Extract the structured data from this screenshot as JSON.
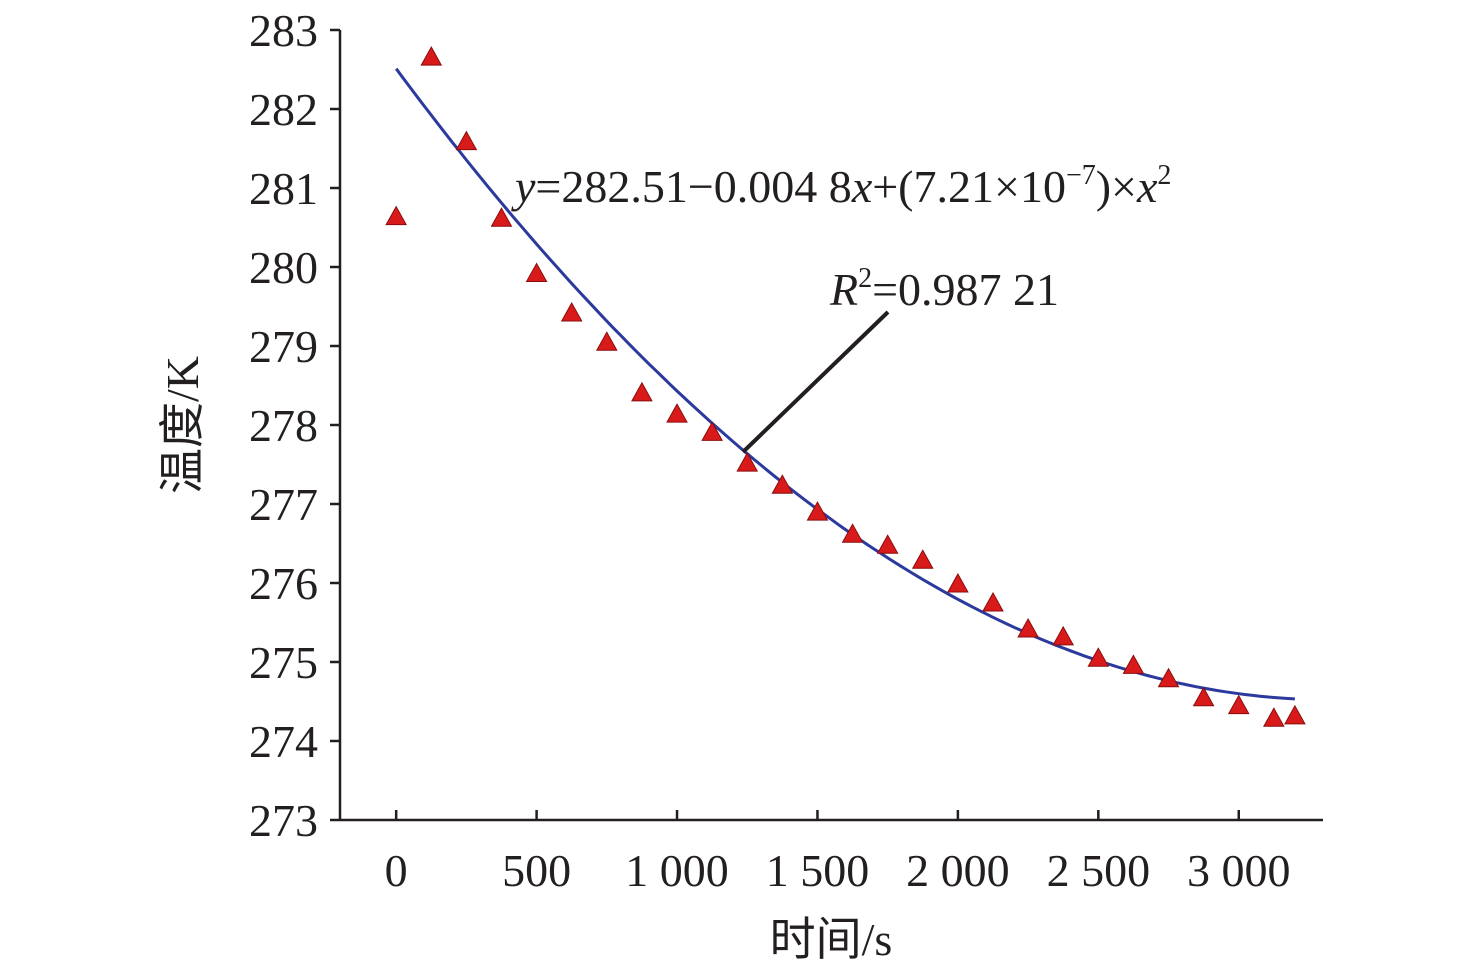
{
  "chart_data": {
    "type": "scatter",
    "xlabel": "时间/s",
    "ylabel": "温度/K",
    "xlim": [
      -200,
      3300
    ],
    "ylim": [
      273,
      283
    ],
    "x_ticks": [
      0,
      500,
      1000,
      1500,
      2000,
      2500,
      3000
    ],
    "x_tick_labels": [
      "0",
      "500",
      "1 000",
      "1 500",
      "2 000",
      "2 500",
      "3 000"
    ],
    "y_ticks": [
      273,
      274,
      275,
      276,
      277,
      278,
      279,
      280,
      281,
      282,
      283
    ],
    "y_tick_labels": [
      "273",
      "274",
      "275",
      "276",
      "277",
      "278",
      "279",
      "280",
      "281",
      "282",
      "283"
    ],
    "series": [
      {
        "marker": "triangle",
        "color": "#d91a1a",
        "x": [
          0,
          125,
          250,
          375,
          500,
          625,
          750,
          875,
          1000,
          1125,
          1250,
          1375,
          1500,
          1625,
          1750,
          1875,
          2000,
          2125,
          2250,
          2375,
          2500,
          2625,
          2750,
          2875,
          3000,
          3125,
          3200
        ],
        "y": [
          280.65,
          282.67,
          281.6,
          280.63,
          279.93,
          279.43,
          279.06,
          278.42,
          278.15,
          277.92,
          277.53,
          277.25,
          276.91,
          276.63,
          276.49,
          276.3,
          276.0,
          275.76,
          275.43,
          275.33,
          275.06,
          274.97,
          274.8,
          274.56,
          274.46,
          274.3,
          274.33
        ]
      },
      {
        "type": "line",
        "color": "#2b3a9c",
        "fit": {
          "a": 282.51,
          "b": -0.0048,
          "c": 7.21e-07
        },
        "x_range": [
          0,
          3200
        ]
      }
    ],
    "annotations": {
      "equation": {
        "y": "y",
        "rhs1": "=282.51−0.004 8",
        "x1": "x",
        "rhs2": "+(7.21×10",
        "exp": "−7",
        "rhs3": ")×",
        "x2": "x",
        "sq": "2"
      },
      "r2": {
        "r": "R",
        "sq": "2",
        "value": "=0.987 21"
      }
    }
  }
}
